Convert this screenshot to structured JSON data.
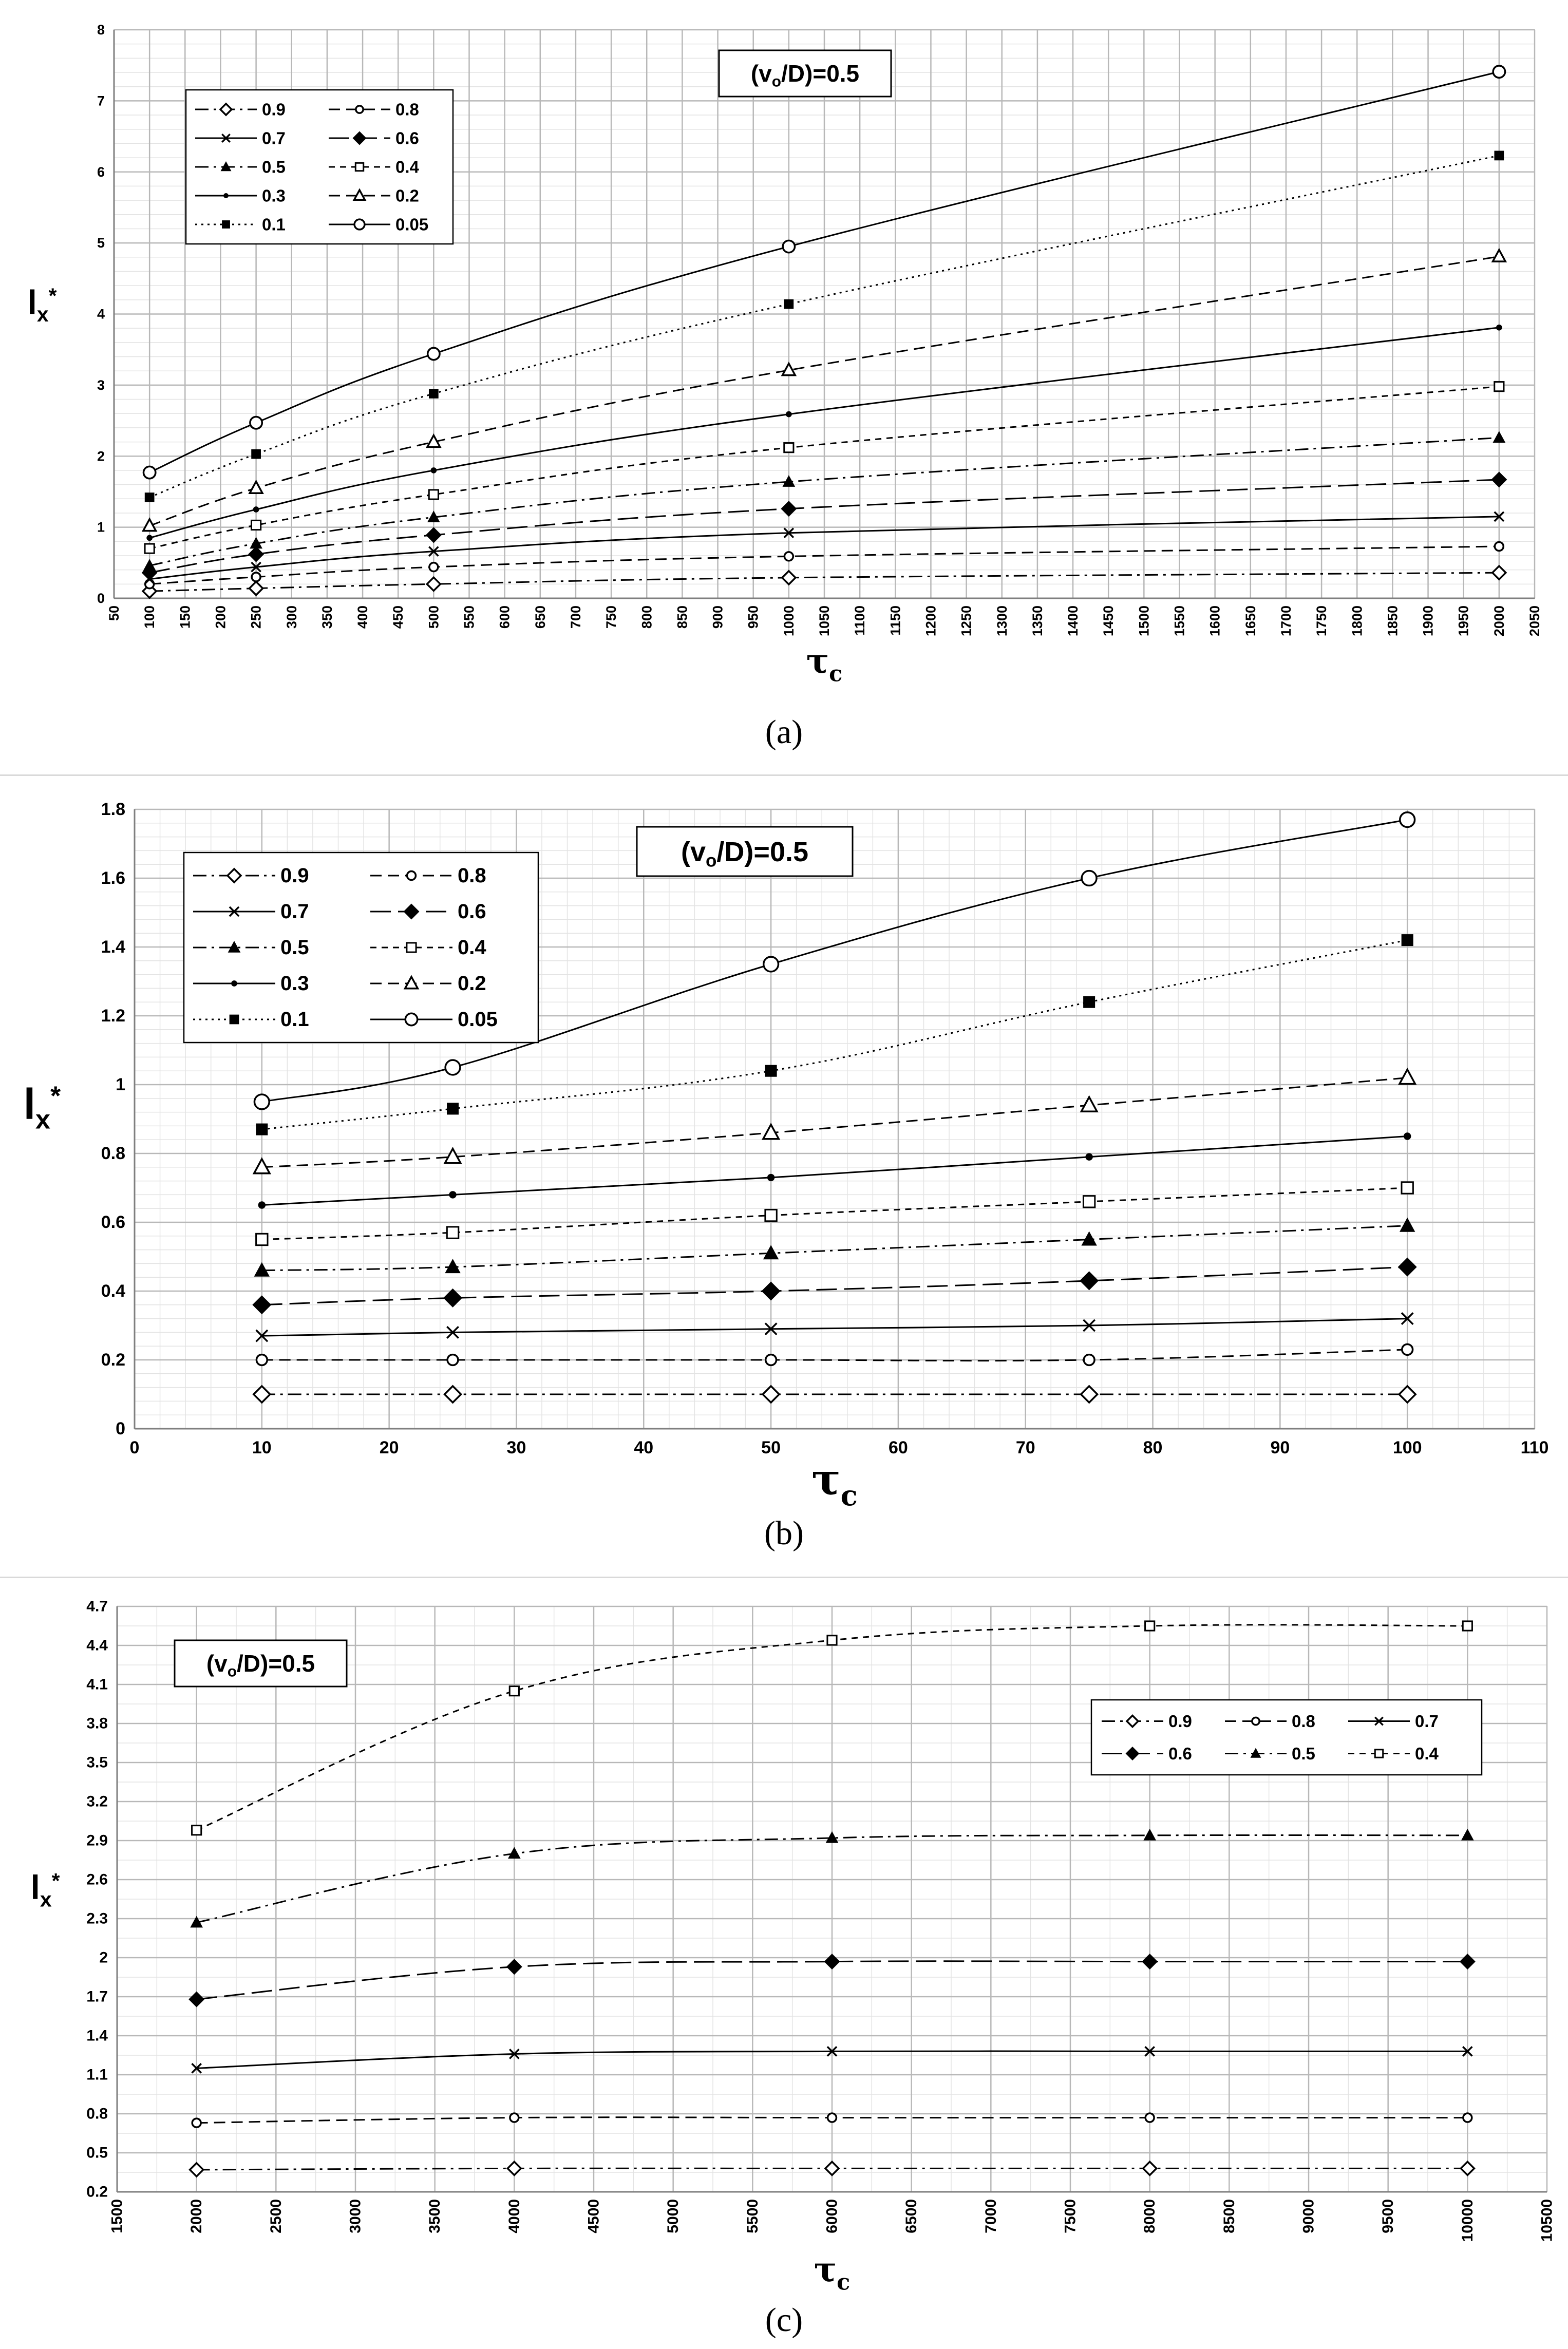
{
  "figure": {
    "captions": [
      "(a)",
      "(b)",
      "(c)"
    ]
  },
  "chart_data": [
    {
      "type": "line",
      "panel": "a",
      "annotation": "(vₒ/D)=0.5",
      "xlabel": "τc",
      "ylabel": "lx*",
      "xlim": [
        50,
        2050
      ],
      "ylim": [
        0,
        8
      ],
      "xticks": [
        50,
        100,
        150,
        200,
        250,
        300,
        350,
        400,
        450,
        500,
        550,
        600,
        650,
        700,
        750,
        800,
        850,
        900,
        950,
        1000,
        1050,
        1100,
        1150,
        1200,
        1250,
        1300,
        1350,
        1400,
        1450,
        1500,
        1550,
        1600,
        1650,
        1700,
        1750,
        1800,
        1850,
        1900,
        1950,
        2000,
        2050
      ],
      "xtick_labels": [
        "50",
        "100",
        "150",
        "200",
        "250",
        "300",
        "350",
        "400",
        "450",
        "500",
        "550",
        "600",
        "650",
        "700",
        "750",
        "800",
        "850",
        "900",
        "950",
        "1000",
        "1050",
        "1100",
        "1150",
        "1200",
        "1250",
        "1300",
        "1350",
        "1400",
        "1450",
        "1500",
        "1550",
        "1600",
        "1650",
        "1700",
        "1750",
        "1800",
        "1850",
        "1900",
        "1950",
        "2000",
        "2050"
      ],
      "yticks": [
        0,
        1,
        2,
        3,
        4,
        5,
        6,
        7,
        8
      ],
      "ytick_labels": [
        "0",
        "1",
        "2",
        "3",
        "4",
        "5",
        "6",
        "7",
        "8"
      ],
      "x": [
        100,
        250,
        500,
        1000,
        2000
      ],
      "legend_position": "top-left",
      "legend_columns": 2,
      "series": [
        {
          "name": "0.9",
          "values": [
            0.1,
            0.14,
            0.2,
            0.29,
            0.36
          ],
          "marker": "diamond-open",
          "dash": "dashdot"
        },
        {
          "name": "0.8",
          "values": [
            0.2,
            0.3,
            0.44,
            0.59,
            0.73
          ],
          "marker": "circle-open-s",
          "dash": "dashed"
        },
        {
          "name": "0.7",
          "values": [
            0.27,
            0.44,
            0.66,
            0.92,
            1.15
          ],
          "marker": "x",
          "dash": "solid"
        },
        {
          "name": "0.6",
          "values": [
            0.36,
            0.62,
            0.89,
            1.26,
            1.67
          ],
          "marker": "diamond",
          "dash": "longdash"
        },
        {
          "name": "0.5",
          "values": [
            0.46,
            0.77,
            1.14,
            1.64,
            2.26
          ],
          "marker": "triangle",
          "dash": "dashdot"
        },
        {
          "name": "0.4",
          "values": [
            0.7,
            1.03,
            1.46,
            2.12,
            2.98
          ],
          "marker": "square-open",
          "dash": "shortdash"
        },
        {
          "name": "0.3",
          "values": [
            0.85,
            1.25,
            1.8,
            2.59,
            3.81
          ],
          "marker": "dot",
          "dash": "solid"
        },
        {
          "name": "0.2",
          "values": [
            1.02,
            1.55,
            2.2,
            3.21,
            4.81
          ],
          "marker": "triangle-open",
          "dash": "dashed"
        },
        {
          "name": "0.1",
          "values": [
            1.42,
            2.03,
            2.88,
            4.14,
            6.23
          ],
          "marker": "square",
          "dash": "dotted"
        },
        {
          "name": "0.05",
          "values": [
            1.77,
            2.47,
            3.44,
            4.95,
            7.41
          ],
          "marker": "circle-open",
          "dash": "solid"
        }
      ]
    },
    {
      "type": "line",
      "panel": "b",
      "annotation": "(vₒ/D)=0.5",
      "xlabel": "τc",
      "ylabel": "lx*",
      "xlim": [
        0,
        110
      ],
      "ylim": [
        0,
        1.8
      ],
      "xticks": [
        0,
        10,
        20,
        30,
        40,
        50,
        60,
        70,
        80,
        90,
        100,
        110
      ],
      "xtick_labels": [
        "0",
        "10",
        "20",
        "30",
        "40",
        "50",
        "60",
        "70",
        "80",
        "90",
        "100",
        "110"
      ],
      "yticks": [
        0,
        0.2,
        0.4,
        0.6,
        0.8,
        1,
        1.2,
        1.4,
        1.6,
        1.8
      ],
      "ytick_labels": [
        "0",
        "0.2",
        "0.4",
        "0.6",
        "0.8",
        "1",
        "1.2",
        "1.4",
        "1.6",
        "1.8"
      ],
      "x": [
        10,
        25,
        50,
        75,
        100
      ],
      "legend_position": "top-left",
      "legend_columns": 2,
      "series": [
        {
          "name": "0.9",
          "values": [
            0.1,
            0.1,
            0.1,
            0.1,
            0.1
          ],
          "marker": "diamond-open",
          "dash": "dashdot"
        },
        {
          "name": "0.8",
          "values": [
            0.2,
            0.2,
            0.2,
            0.2,
            0.23
          ],
          "marker": "circle-open-s",
          "dash": "dashed"
        },
        {
          "name": "0.7",
          "values": [
            0.27,
            0.28,
            0.29,
            0.3,
            0.32
          ],
          "marker": "x",
          "dash": "solid"
        },
        {
          "name": "0.6",
          "values": [
            0.36,
            0.38,
            0.4,
            0.43,
            0.47
          ],
          "marker": "diamond",
          "dash": "longdash"
        },
        {
          "name": "0.5",
          "values": [
            0.46,
            0.47,
            0.51,
            0.55,
            0.59
          ],
          "marker": "triangle",
          "dash": "dashdot"
        },
        {
          "name": "0.4",
          "values": [
            0.55,
            0.57,
            0.62,
            0.66,
            0.7
          ],
          "marker": "square-open",
          "dash": "shortdash"
        },
        {
          "name": "0.3",
          "values": [
            0.65,
            0.68,
            0.73,
            0.79,
            0.85
          ],
          "marker": "dot",
          "dash": "solid"
        },
        {
          "name": "0.2",
          "values": [
            0.76,
            0.79,
            0.86,
            0.94,
            1.02
          ],
          "marker": "triangle-open",
          "dash": "dashed"
        },
        {
          "name": "0.1",
          "values": [
            0.87,
            0.93,
            1.04,
            1.24,
            1.42
          ],
          "marker": "square",
          "dash": "dotted"
        },
        {
          "name": "0.05",
          "values": [
            0.95,
            1.05,
            1.35,
            1.6,
            1.77
          ],
          "marker": "circle-open",
          "dash": "solid"
        }
      ]
    },
    {
      "type": "line",
      "panel": "c",
      "annotation": "(vₒ/D)=0.5",
      "xlabel": "τc",
      "ylabel": "lx*",
      "xlim": [
        1500,
        10500
      ],
      "ylim": [
        0.2,
        4.7
      ],
      "xticks": [
        1500,
        2000,
        2500,
        3000,
        3500,
        4000,
        4500,
        5000,
        5500,
        6000,
        6500,
        7000,
        7500,
        8000,
        8500,
        9000,
        9500,
        10000,
        10500
      ],
      "xtick_labels": [
        "1500",
        "2000",
        "2500",
        "3000",
        "3500",
        "4000",
        "4500",
        "5000",
        "5500",
        "6000",
        "6500",
        "7000",
        "7500",
        "8000",
        "8500",
        "9000",
        "9500",
        "10000",
        "10500"
      ],
      "yticks": [
        0.2,
        0.5,
        0.8,
        1.1,
        1.4,
        1.7,
        2,
        2.3,
        2.6,
        2.9,
        3.2,
        3.5,
        3.8,
        4.1,
        4.4,
        4.7
      ],
      "ytick_labels": [
        "0.2",
        "0.5",
        "0.8",
        "1.1",
        "1.4",
        "1.7",
        "2",
        "2.3",
        "2.6",
        "2.9",
        "3.2",
        "3.5",
        "3.8",
        "4.1",
        "4.4",
        "4.7"
      ],
      "x": [
        2000,
        4000,
        6000,
        8000,
        10000
      ],
      "legend_position": "top-right",
      "legend_columns": 3,
      "series": [
        {
          "name": "0.9",
          "values": [
            0.37,
            0.38,
            0.38,
            0.38,
            0.38
          ],
          "marker": "diamond-open",
          "dash": "dashdot"
        },
        {
          "name": "0.8",
          "values": [
            0.73,
            0.77,
            0.77,
            0.77,
            0.77
          ],
          "marker": "circle-open-s",
          "dash": "dashed"
        },
        {
          "name": "0.7",
          "values": [
            1.15,
            1.26,
            1.28,
            1.28,
            1.28
          ],
          "marker": "x",
          "dash": "solid"
        },
        {
          "name": "0.6",
          "values": [
            1.68,
            1.93,
            1.97,
            1.97,
            1.97
          ],
          "marker": "diamond",
          "dash": "longdash"
        },
        {
          "name": "0.5",
          "values": [
            2.27,
            2.8,
            2.92,
            2.94,
            2.94
          ],
          "marker": "triangle",
          "dash": "dashdot"
        },
        {
          "name": "0.4",
          "values": [
            2.98,
            4.05,
            4.44,
            4.55,
            4.55
          ],
          "marker": "square-open",
          "dash": "shortdash"
        }
      ]
    }
  ]
}
